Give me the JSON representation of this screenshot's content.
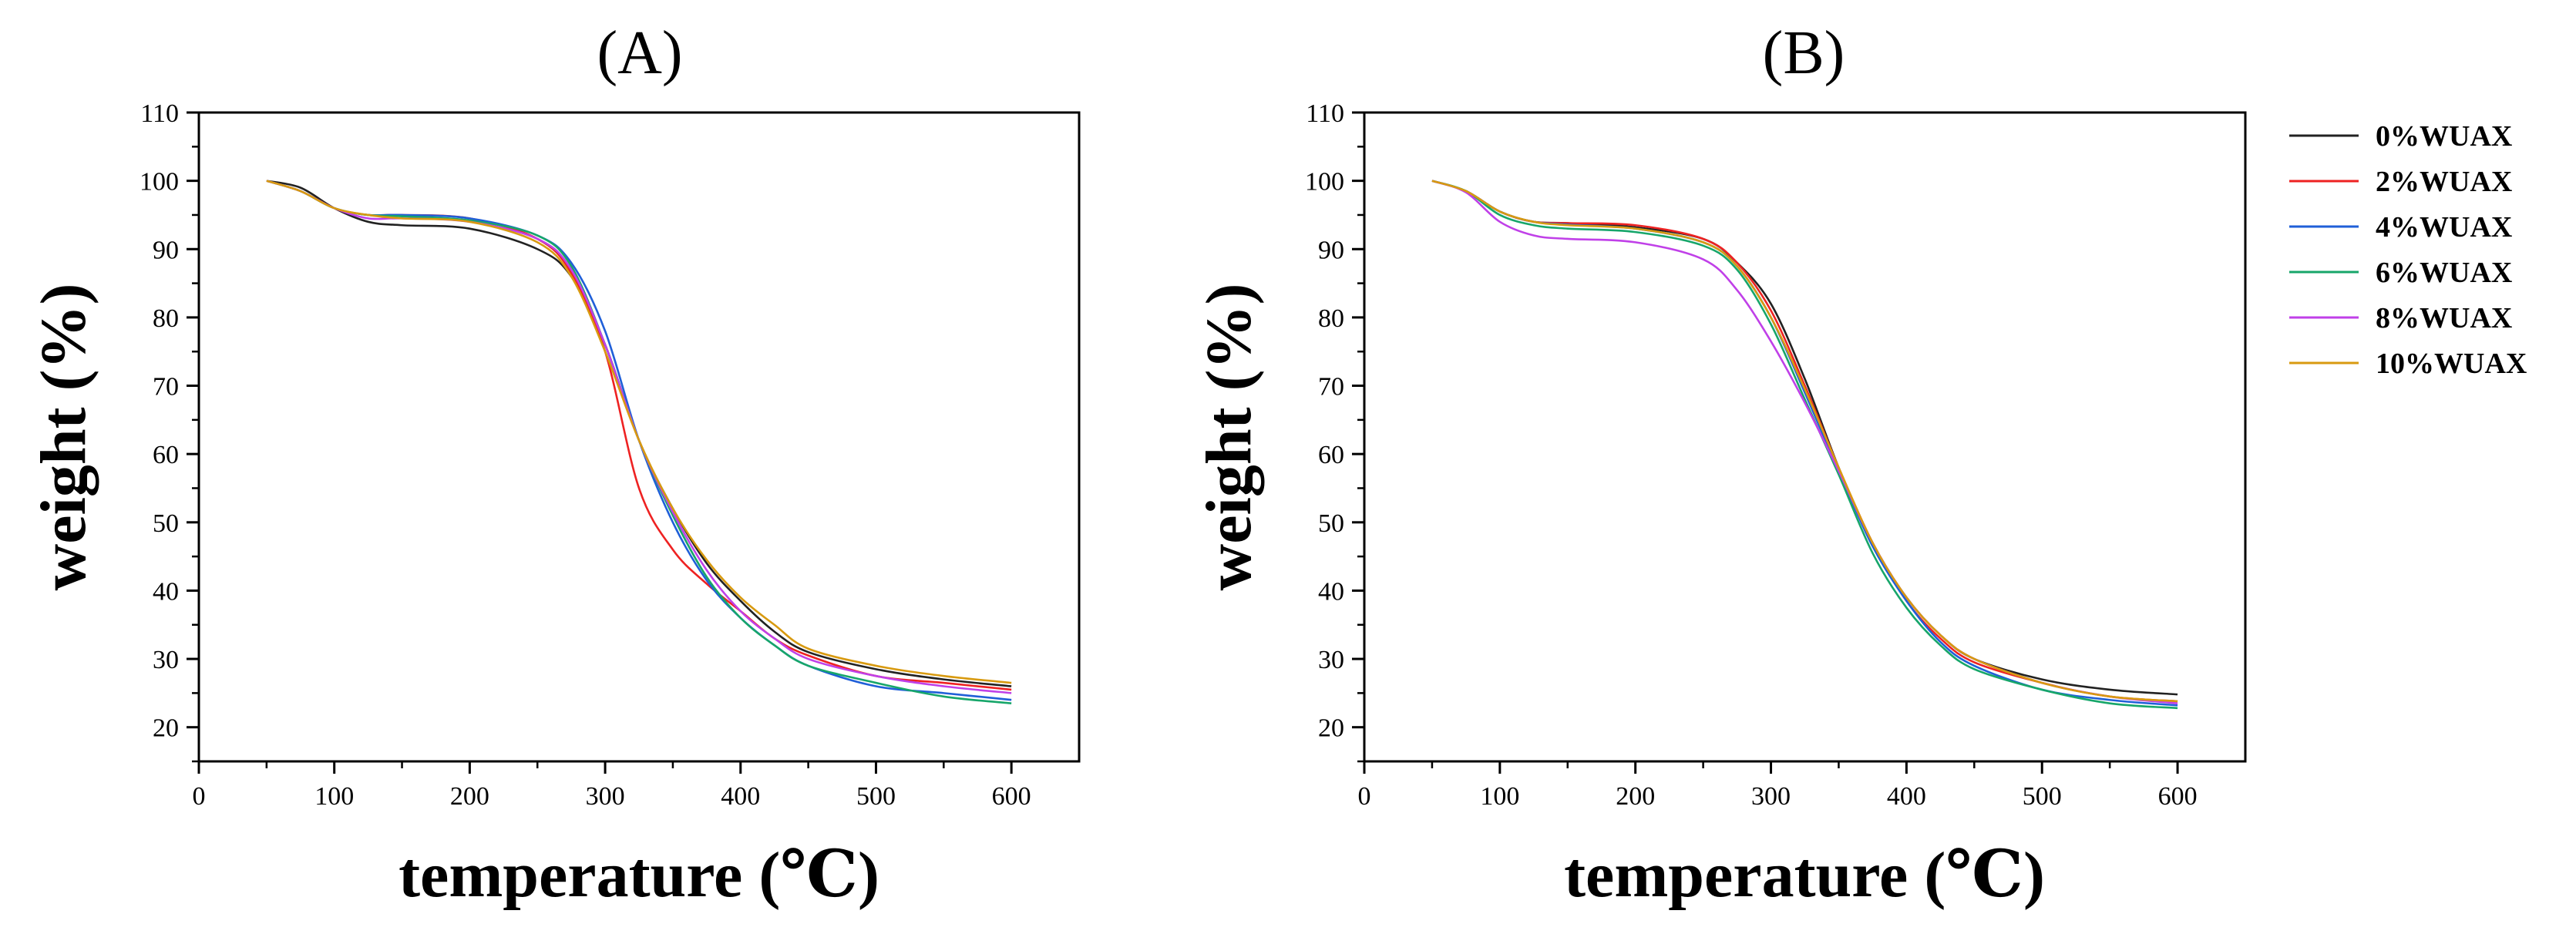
{
  "colors": {
    "0%WUAX": "#222222",
    "2%WUAX": "#ee2222",
    "4%WUAX": "#1f5fd8",
    "6%WUAX": "#17a66a",
    "8%WUAX": "#c040e8",
    "10%WUAX": "#d89a10"
  },
  "legend": {
    "entries": [
      "0%WUAX",
      "2%WUAX",
      "4%WUAX",
      "6%WUAX",
      "8%WUAX",
      "10%WUAX"
    ]
  },
  "chart_data": [
    {
      "type": "line",
      "title": "(A)",
      "xlabel": "temperature (℃)",
      "ylabel": "weight (%)",
      "xlim": [
        0,
        650
      ],
      "ylim": [
        15,
        110
      ],
      "xticks": [
        0,
        100,
        200,
        300,
        400,
        500,
        600
      ],
      "yticks": [
        20,
        30,
        40,
        50,
        60,
        70,
        80,
        90,
        100,
        110
      ],
      "x": [
        50,
        75,
        100,
        125,
        150,
        200,
        250,
        275,
        300,
        325,
        350,
        375,
        400,
        425,
        450,
        500,
        550,
        600
      ],
      "series": [
        {
          "name": "0%WUAX",
          "values": [
            100,
            99,
            96,
            94,
            93.5,
            93,
            90,
            86,
            76,
            62,
            52,
            44,
            38.5,
            34,
            31,
            28.5,
            27,
            26
          ]
        },
        {
          "name": "2%WUAX",
          "values": [
            100,
            98.5,
            96,
            95,
            95,
            94.5,
            91.5,
            86.5,
            75,
            55,
            46,
            41,
            37,
            33,
            30.5,
            27.5,
            26.5,
            25.5
          ]
        },
        {
          "name": "4%WUAX",
          "values": [
            100,
            98.5,
            96,
            95,
            95,
            94.5,
            92,
            88,
            78,
            62,
            50,
            41.5,
            36,
            32,
            29,
            26,
            25,
            24
          ]
        },
        {
          "name": "6%WUAX",
          "values": [
            100,
            98.5,
            96,
            95,
            94.8,
            94.2,
            92,
            87.5,
            76,
            62,
            51,
            42,
            36,
            32,
            29,
            26.5,
            24.5,
            23.5
          ]
        },
        {
          "name": "8%WUAX",
          "values": [
            100,
            98.5,
            96,
            94.5,
            94.5,
            94,
            91.5,
            87,
            76,
            62,
            51.5,
            43,
            37,
            33,
            30,
            27.5,
            26,
            25
          ]
        },
        {
          "name": "10%WUAX",
          "values": [
            100,
            98.5,
            96,
            95,
            94.5,
            94,
            91,
            86,
            75,
            62,
            52,
            44.5,
            39,
            35,
            31.5,
            29,
            27.5,
            26.5
          ]
        }
      ]
    },
    {
      "type": "line",
      "title": "(B)",
      "xlabel": "temperature (℃)",
      "ylabel": "weight (%)",
      "xlim": [
        0,
        650
      ],
      "ylim": [
        15,
        110
      ],
      "xticks": [
        0,
        100,
        200,
        300,
        400,
        500,
        600
      ],
      "yticks": [
        20,
        30,
        40,
        50,
        60,
        70,
        80,
        90,
        100,
        110
      ],
      "x": [
        50,
        75,
        100,
        125,
        150,
        200,
        250,
        275,
        300,
        325,
        350,
        375,
        400,
        425,
        450,
        500,
        550,
        600
      ],
      "series": [
        {
          "name": "0%WUAX",
          "values": [
            100,
            98.5,
            95.5,
            94,
            93.8,
            93.2,
            91.5,
            88,
            82,
            71,
            58,
            47,
            39,
            33.5,
            30,
            27,
            25.5,
            24.8
          ]
        },
        {
          "name": "2%WUAX",
          "values": [
            100,
            98.5,
            95.5,
            94,
            93.8,
            93.5,
            91.5,
            88,
            81,
            70,
            58,
            47,
            38.5,
            33,
            29.5,
            26.5,
            24.5,
            23.8
          ]
        },
        {
          "name": "4%WUAX",
          "values": [
            100,
            98.5,
            95.5,
            94,
            93.6,
            93,
            91,
            87.5,
            80,
            69,
            57.5,
            46.5,
            38.5,
            32.5,
            29,
            25.5,
            24,
            23.2
          ]
        },
        {
          "name": "6%WUAX",
          "values": [
            100,
            98.5,
            95,
            93.5,
            93,
            92.5,
            90.5,
            87,
            79,
            68,
            57,
            45.5,
            37.5,
            32,
            28.5,
            25.5,
            23.5,
            22.8
          ]
        },
        {
          "name": "8%WUAX",
          "values": [
            100,
            98.3,
            94,
            92,
            91.5,
            91,
            88.5,
            84,
            76.5,
            67.5,
            57.5,
            47,
            39,
            33.5,
            30,
            26.5,
            24.5,
            23.5
          ]
        },
        {
          "name": "10%WUAX",
          "values": [
            100,
            98.5,
            95.5,
            94,
            93.5,
            93,
            91,
            87.5,
            80,
            69.5,
            58,
            47,
            39,
            33.5,
            30,
            26.5,
            24.5,
            23.8
          ]
        }
      ]
    }
  ]
}
